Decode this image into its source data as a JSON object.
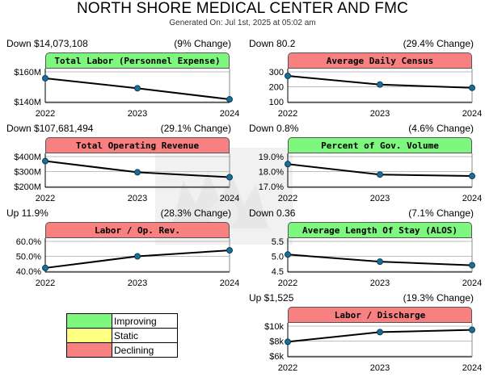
{
  "header": {
    "title": "NORTH SHORE MEDICAL CENTER AND FMC",
    "subtitle": "Generated On: Jul 1st, 2025 at 05:02 am"
  },
  "legend": [
    {
      "label": "Improving",
      "color": "#7ef77e"
    },
    {
      "label": "Static",
      "color": "#ffff80"
    },
    {
      "label": "Declining",
      "color": "#f98080"
    }
  ],
  "chart_data": [
    {
      "type": "line",
      "title": "Total Labor (Personnel Expense)",
      "status": "improving",
      "change_left": "Down $14,073,108",
      "change_right": "(9% Change)",
      "x": [
        "2022",
        "2023",
        "2024"
      ],
      "values": [
        155.7,
        149.0,
        141.6
      ],
      "ylim": [
        140,
        160
      ],
      "yticks": [
        {
          "v": 160,
          "label": "$160M"
        },
        {
          "v": 140,
          "label": "$140M"
        }
      ]
    },
    {
      "type": "line",
      "title": "Average Daily Census",
      "status": "declining",
      "change_left": "Down 80.2",
      "change_right": "(29.4% Change)",
      "x": [
        "2022",
        "2023",
        "2024"
      ],
      "values": [
        273,
        215,
        193
      ],
      "ylim": [
        100,
        300
      ],
      "yticks": [
        {
          "v": 300,
          "label": "300"
        },
        {
          "v": 200,
          "label": "200"
        },
        {
          "v": 100,
          "label": "100"
        }
      ]
    },
    {
      "type": "line",
      "title": "Total Operating Revenue",
      "status": "declining",
      "change_left": "Down $107,681,494",
      "change_right": "(29.1% Change)",
      "x": [
        "2022",
        "2023",
        "2024"
      ],
      "values": [
        370,
        295,
        262
      ],
      "ylim": [
        200,
        400
      ],
      "yticks": [
        {
          "v": 400,
          "label": "$400M"
        },
        {
          "v": 300,
          "label": "$300M"
        },
        {
          "v": 200,
          "label": "$200M"
        }
      ]
    },
    {
      "type": "line",
      "title": "Percent of Gov. Volume",
      "status": "improving",
      "change_left": "Down 0.8%",
      "change_right": "(4.6% Change)",
      "x": [
        "2022",
        "2023",
        "2024"
      ],
      "values": [
        18.5,
        17.8,
        17.7
      ],
      "ylim": [
        17,
        19
      ],
      "yticks": [
        {
          "v": 19,
          "label": "19.0%"
        },
        {
          "v": 18,
          "label": "18.0%"
        },
        {
          "v": 17,
          "label": "17.0%"
        }
      ]
    },
    {
      "type": "line",
      "title": "Labor / Op. Rev.",
      "status": "declining",
      "change_left": "Up 11.9%",
      "change_right": "(28.3% Change)",
      "x": [
        "2022",
        "2023",
        "2024"
      ],
      "values": [
        42.2,
        50.0,
        54.0
      ],
      "ylim": [
        40,
        60
      ],
      "yticks": [
        {
          "v": 60,
          "label": "60.0%"
        },
        {
          "v": 50,
          "label": "50.0%"
        },
        {
          "v": 40,
          "label": "40.0%"
        }
      ]
    },
    {
      "type": "line",
      "title": "Average Length Of Stay (ALOS)",
      "status": "improving",
      "change_left": "Down 0.36",
      "change_right": "(7.1% Change)",
      "x": [
        "2022",
        "2023",
        "2024"
      ],
      "values": [
        5.06,
        4.82,
        4.7
      ],
      "ylim": [
        4.5,
        5.5
      ],
      "yticks": [
        {
          "v": 5.5,
          "label": "5.5"
        },
        {
          "v": 5.0,
          "label": "5.0"
        },
        {
          "v": 4.5,
          "label": "4.5"
        }
      ]
    },
    {
      "type": "line",
      "title": "Labor / Discharge",
      "status": "declining",
      "change_left": "Up $1,525",
      "change_right": "(19.3% Change)",
      "x": [
        "2022",
        "2023",
        "2024"
      ],
      "values": [
        7.9,
        9.2,
        9.5
      ],
      "ylim": [
        6,
        10
      ],
      "yticks": [
        {
          "v": 10,
          "label": "$10k"
        },
        {
          "v": 8,
          "label": "$8k"
        },
        {
          "v": 6,
          "label": "$6k"
        }
      ]
    }
  ]
}
